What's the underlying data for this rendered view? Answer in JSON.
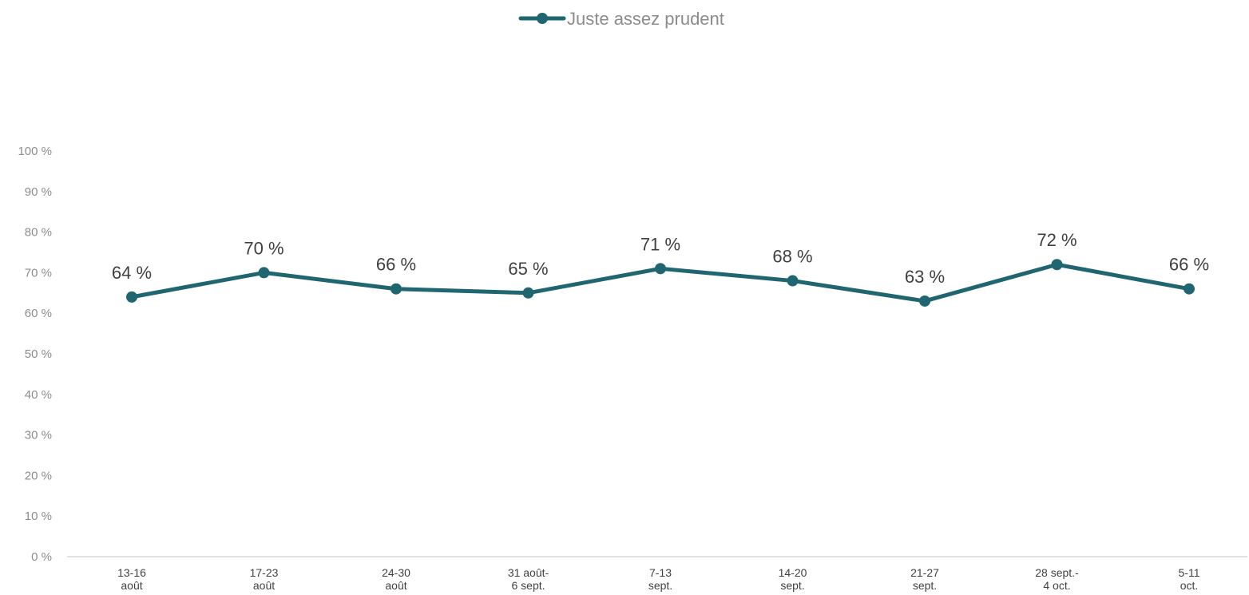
{
  "chart_data": {
    "type": "line",
    "title": "",
    "xlabel": "",
    "ylabel": "",
    "ylim": [
      0,
      100
    ],
    "y_ticks": [
      "0 %",
      "10 %",
      "20 %",
      "30 %",
      "40 %",
      "50 %",
      "60 %",
      "70 %",
      "80 %",
      "90 %",
      "100 %"
    ],
    "categories": [
      [
        "13-16",
        "août"
      ],
      [
        "17-23",
        "août"
      ],
      [
        "24-30",
        "août"
      ],
      [
        "31 août-",
        "6 sept."
      ],
      [
        "7-13",
        "sept."
      ],
      [
        "14-20",
        "sept."
      ],
      [
        "21-27",
        "sept."
      ],
      [
        "28 sept.-",
        "4 oct."
      ],
      [
        "5-11",
        "oct."
      ]
    ],
    "series": [
      {
        "name": "Juste assez prudent",
        "values": [
          64,
          70,
          66,
          65,
          71,
          68,
          63,
          72,
          66
        ],
        "labels": [
          "64 %",
          "70 %",
          "66 %",
          "65 %",
          "71 %",
          "68 %",
          "63 %",
          "72 %",
          "66 %"
        ],
        "color": "#1f6670"
      }
    ],
    "grid": false,
    "legend_position": "top-center",
    "axis_line_color": "#d9d9d9"
  }
}
